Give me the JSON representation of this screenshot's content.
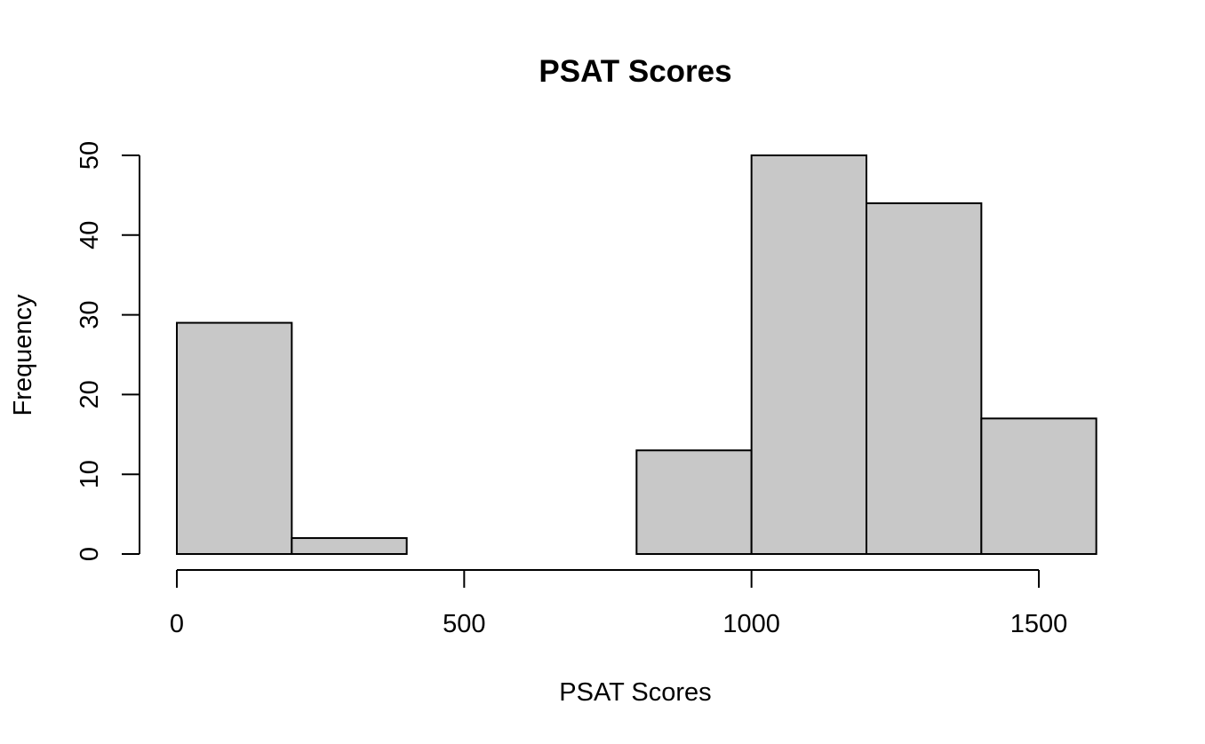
{
  "chart_data": {
    "type": "bar",
    "title": "PSAT Scores",
    "xlabel": "PSAT Scores",
    "ylabel": "Frequency",
    "bins": [
      {
        "start": 0,
        "end": 200,
        "count": 29
      },
      {
        "start": 200,
        "end": 400,
        "count": 2
      },
      {
        "start": 400,
        "end": 600,
        "count": 0
      },
      {
        "start": 600,
        "end": 800,
        "count": 0
      },
      {
        "start": 800,
        "end": 1000,
        "count": 13
      },
      {
        "start": 1000,
        "end": 1200,
        "count": 50
      },
      {
        "start": 1200,
        "end": 1400,
        "count": 44
      },
      {
        "start": 1400,
        "end": 1600,
        "count": 17
      }
    ],
    "xticks": [
      0,
      500,
      1000,
      1500
    ],
    "yticks": [
      0,
      10,
      20,
      30,
      40,
      50
    ],
    "xlim": [
      0,
      1500
    ],
    "ylim": [
      0,
      50
    ],
    "grid": false,
    "colors": {
      "bar_fill": "#c8c8c8",
      "bar_stroke": "#000000"
    }
  }
}
